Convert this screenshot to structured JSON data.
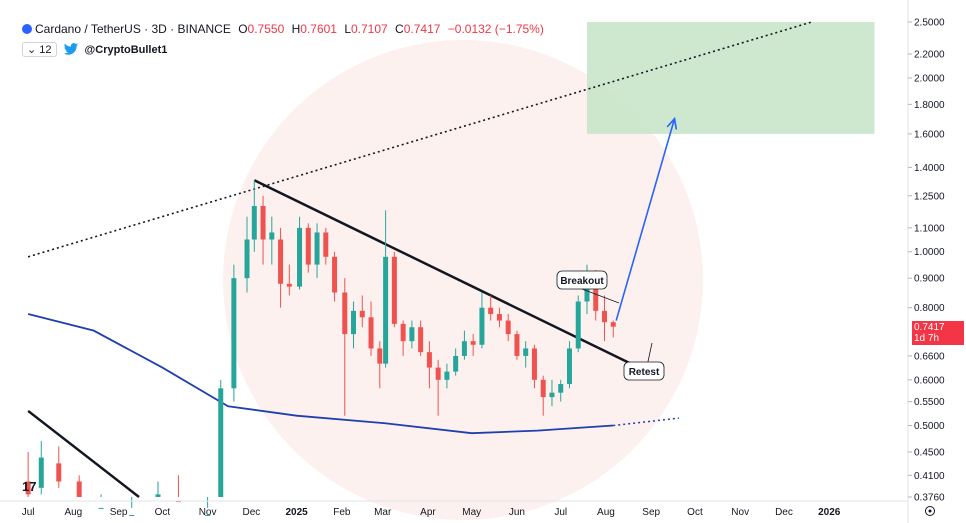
{
  "header": {
    "symbol": "Cardano / TetherUS · 3D · BINANCE",
    "open_label": "O",
    "open": "0.7550",
    "high_label": "H",
    "high": "0.7601",
    "low_label": "L",
    "low": "0.7107",
    "close_label": "C",
    "close": "0.7417",
    "change": "−0.0132 (−1.75%)",
    "indicator_count": "12",
    "author": "@CryptoBullet1"
  },
  "price_tag": {
    "price": "0.7417",
    "countdown": "1d 7h"
  },
  "annotations": {
    "breakout": "Breakout",
    "retest": "Retest"
  },
  "colors": {
    "up": "#26a69a",
    "down": "#ef5350",
    "ma": "#1e3fae",
    "target_zone": "#c8e6c9",
    "arrow": "#2962ff",
    "price_tag": "#f23645"
  },
  "chart_data": {
    "type": "candlestick",
    "symbol": "ADA/USDT",
    "timeframe": "3D",
    "y_scale": "log",
    "ylim": [
      0.376,
      2.5
    ],
    "y_ticks": [
      "2.5000",
      "2.2000",
      "2.0000",
      "1.8000",
      "1.6000",
      "1.4000",
      "1.2500",
      "1.1000",
      "1.0000",
      "0.9000",
      "0.8000",
      "0.6600",
      "0.6000",
      "0.5500",
      "0.5000",
      "0.4500",
      "0.4100",
      "0.3760"
    ],
    "x_ticks": [
      "Jul",
      "Aug",
      "Sep",
      "Oct",
      "Nov",
      "Dec",
      "2025",
      "Feb",
      "Mar",
      "Apr",
      "May",
      "Jun",
      "Jul",
      "Aug",
      "Sep",
      "Oct",
      "Nov",
      "Dec",
      "2026"
    ],
    "candles": [
      {
        "t": "2024-07-01",
        "o": 0.4,
        "h": 0.45,
        "l": 0.37,
        "c": 0.38
      },
      {
        "t": "2024-07-10",
        "o": 0.39,
        "h": 0.47,
        "l": 0.38,
        "c": 0.44
      },
      {
        "t": "2024-07-22",
        "o": 0.43,
        "h": 0.46,
        "l": 0.39,
        "c": 0.4
      },
      {
        "t": "2024-08-05",
        "o": 0.4,
        "h": 0.41,
        "l": 0.32,
        "c": 0.35
      },
      {
        "t": "2024-08-20",
        "o": 0.35,
        "h": 0.38,
        "l": 0.33,
        "c": 0.36
      },
      {
        "t": "2024-09-10",
        "o": 0.34,
        "h": 0.36,
        "l": 0.32,
        "c": 0.35
      },
      {
        "t": "2024-09-28",
        "o": 0.36,
        "h": 0.4,
        "l": 0.35,
        "c": 0.38
      },
      {
        "t": "2024-10-12",
        "o": 0.37,
        "h": 0.41,
        "l": 0.34,
        "c": 0.35
      },
      {
        "t": "2024-11-01",
        "o": 0.33,
        "h": 0.36,
        "l": 0.32,
        "c": 0.35
      },
      {
        "t": "2024-11-10",
        "o": 0.35,
        "h": 0.6,
        "l": 0.34,
        "c": 0.58
      },
      {
        "t": "2024-11-19",
        "o": 0.58,
        "h": 0.95,
        "l": 0.55,
        "c": 0.9
      },
      {
        "t": "2024-11-28",
        "o": 0.9,
        "h": 1.15,
        "l": 0.85,
        "c": 1.05
      },
      {
        "t": "2024-12-03",
        "o": 1.05,
        "h": 1.33,
        "l": 1.0,
        "c": 1.2
      },
      {
        "t": "2024-12-09",
        "o": 1.2,
        "h": 1.25,
        "l": 0.95,
        "c": 1.05
      },
      {
        "t": "2024-12-15",
        "o": 1.05,
        "h": 1.15,
        "l": 0.95,
        "c": 1.08
      },
      {
        "t": "2024-12-21",
        "o": 1.05,
        "h": 1.1,
        "l": 0.8,
        "c": 0.88
      },
      {
        "t": "2024-12-27",
        "o": 0.88,
        "h": 0.95,
        "l": 0.84,
        "c": 0.87
      },
      {
        "t": "2025-01-03",
        "o": 0.87,
        "h": 1.15,
        "l": 0.86,
        "c": 1.1
      },
      {
        "t": "2025-01-09",
        "o": 1.1,
        "h": 1.12,
        "l": 0.92,
        "c": 0.95
      },
      {
        "t": "2025-01-15",
        "o": 0.95,
        "h": 1.12,
        "l": 0.9,
        "c": 1.08
      },
      {
        "t": "2025-01-21",
        "o": 1.08,
        "h": 1.1,
        "l": 0.95,
        "c": 0.98
      },
      {
        "t": "2025-01-27",
        "o": 0.98,
        "h": 1.0,
        "l": 0.82,
        "c": 0.85
      },
      {
        "t": "2025-02-03",
        "o": 0.85,
        "h": 0.9,
        "l": 0.52,
        "c": 0.72
      },
      {
        "t": "2025-02-09",
        "o": 0.72,
        "h": 0.82,
        "l": 0.68,
        "c": 0.79
      },
      {
        "t": "2025-02-15",
        "o": 0.79,
        "h": 0.84,
        "l": 0.74,
        "c": 0.77
      },
      {
        "t": "2025-02-21",
        "o": 0.77,
        "h": 0.82,
        "l": 0.66,
        "c": 0.68
      },
      {
        "t": "2025-02-27",
        "o": 0.68,
        "h": 0.7,
        "l": 0.58,
        "c": 0.64
      },
      {
        "t": "2025-03-03",
        "o": 0.64,
        "h": 1.18,
        "l": 0.63,
        "c": 0.98
      },
      {
        "t": "2025-03-09",
        "o": 0.98,
        "h": 1.0,
        "l": 0.74,
        "c": 0.75
      },
      {
        "t": "2025-03-15",
        "o": 0.75,
        "h": 0.76,
        "l": 0.66,
        "c": 0.7
      },
      {
        "t": "2025-03-21",
        "o": 0.7,
        "h": 0.76,
        "l": 0.68,
        "c": 0.74
      },
      {
        "t": "2025-03-27",
        "o": 0.74,
        "h": 0.76,
        "l": 0.66,
        "c": 0.67
      },
      {
        "t": "2025-04-02",
        "o": 0.67,
        "h": 0.7,
        "l": 0.58,
        "c": 0.63
      },
      {
        "t": "2025-04-08",
        "o": 0.63,
        "h": 0.65,
        "l": 0.52,
        "c": 0.6
      },
      {
        "t": "2025-04-14",
        "o": 0.6,
        "h": 0.64,
        "l": 0.58,
        "c": 0.62
      },
      {
        "t": "2025-04-20",
        "o": 0.62,
        "h": 0.68,
        "l": 0.61,
        "c": 0.66
      },
      {
        "t": "2025-04-26",
        "o": 0.66,
        "h": 0.73,
        "l": 0.65,
        "c": 0.7
      },
      {
        "t": "2025-05-02",
        "o": 0.7,
        "h": 0.72,
        "l": 0.66,
        "c": 0.69
      },
      {
        "t": "2025-05-08",
        "o": 0.69,
        "h": 0.85,
        "l": 0.68,
        "c": 0.8
      },
      {
        "t": "2025-05-14",
        "o": 0.8,
        "h": 0.84,
        "l": 0.76,
        "c": 0.78
      },
      {
        "t": "2025-05-20",
        "o": 0.78,
        "h": 0.8,
        "l": 0.74,
        "c": 0.76
      },
      {
        "t": "2025-05-26",
        "o": 0.76,
        "h": 0.78,
        "l": 0.7,
        "c": 0.72
      },
      {
        "t": "2025-06-01",
        "o": 0.72,
        "h": 0.73,
        "l": 0.65,
        "c": 0.66
      },
      {
        "t": "2025-06-07",
        "o": 0.66,
        "h": 0.7,
        "l": 0.63,
        "c": 0.68
      },
      {
        "t": "2025-06-13",
        "o": 0.68,
        "h": 0.69,
        "l": 0.58,
        "c": 0.6
      },
      {
        "t": "2025-06-19",
        "o": 0.6,
        "h": 0.61,
        "l": 0.52,
        "c": 0.56
      },
      {
        "t": "2025-06-25",
        "o": 0.56,
        "h": 0.6,
        "l": 0.54,
        "c": 0.57
      },
      {
        "t": "2025-07-01",
        "o": 0.57,
        "h": 0.6,
        "l": 0.55,
        "c": 0.59
      },
      {
        "t": "2025-07-07",
        "o": 0.59,
        "h": 0.7,
        "l": 0.58,
        "c": 0.68
      },
      {
        "t": "2025-07-13",
        "o": 0.68,
        "h": 0.84,
        "l": 0.67,
        "c": 0.82
      },
      {
        "t": "2025-07-19",
        "o": 0.82,
        "h": 0.95,
        "l": 0.78,
        "c": 0.88
      },
      {
        "t": "2025-07-25",
        "o": 0.88,
        "h": 0.93,
        "l": 0.76,
        "c": 0.79
      },
      {
        "t": "2025-07-31",
        "o": 0.79,
        "h": 0.84,
        "l": 0.7,
        "c": 0.755
      },
      {
        "t": "2025-08-06",
        "o": 0.755,
        "h": 0.7601,
        "l": 0.7107,
        "c": 0.7417
      }
    ],
    "ma": [
      {
        "t": "2024-07-01",
        "v": 0.78
      },
      {
        "t": "2024-08-15",
        "v": 0.73
      },
      {
        "t": "2024-10-01",
        "v": 0.63
      },
      {
        "t": "2024-11-15",
        "v": 0.54
      },
      {
        "t": "2025-01-01",
        "v": 0.52
      },
      {
        "t": "2025-03-01",
        "v": 0.505
      },
      {
        "t": "2025-05-01",
        "v": 0.485
      },
      {
        "t": "2025-06-15",
        "v": 0.49
      },
      {
        "t": "2025-08-06",
        "v": 0.5
      }
    ],
    "ma_projection": [
      {
        "t": "2025-08-06",
        "v": 0.5
      },
      {
        "t": "2025-09-20",
        "v": 0.515
      }
    ],
    "descending_trendline": [
      {
        "t": "2024-12-03",
        "v": 1.33
      },
      {
        "t": "2025-08-18",
        "v": 0.64
      }
    ],
    "old_trendline": [
      {
        "t": "2024-07-01",
        "v": 0.53
      },
      {
        "t": "2024-09-15",
        "v": 0.376
      }
    ],
    "ascending_dotted_line": [
      {
        "t": "2024-07-01",
        "v": 0.98
      },
      {
        "t": "2025-12-20",
        "v": 2.5
      }
    ],
    "target_zone": {
      "t_start": "2025-07-19",
      "t_end": "2026-02-01",
      "low": 1.6,
      "high": 2.5
    },
    "projection_arrow": [
      {
        "t": "2025-08-08",
        "v": 0.76
      },
      {
        "t": "2025-09-17",
        "v": 1.7
      }
    ]
  }
}
